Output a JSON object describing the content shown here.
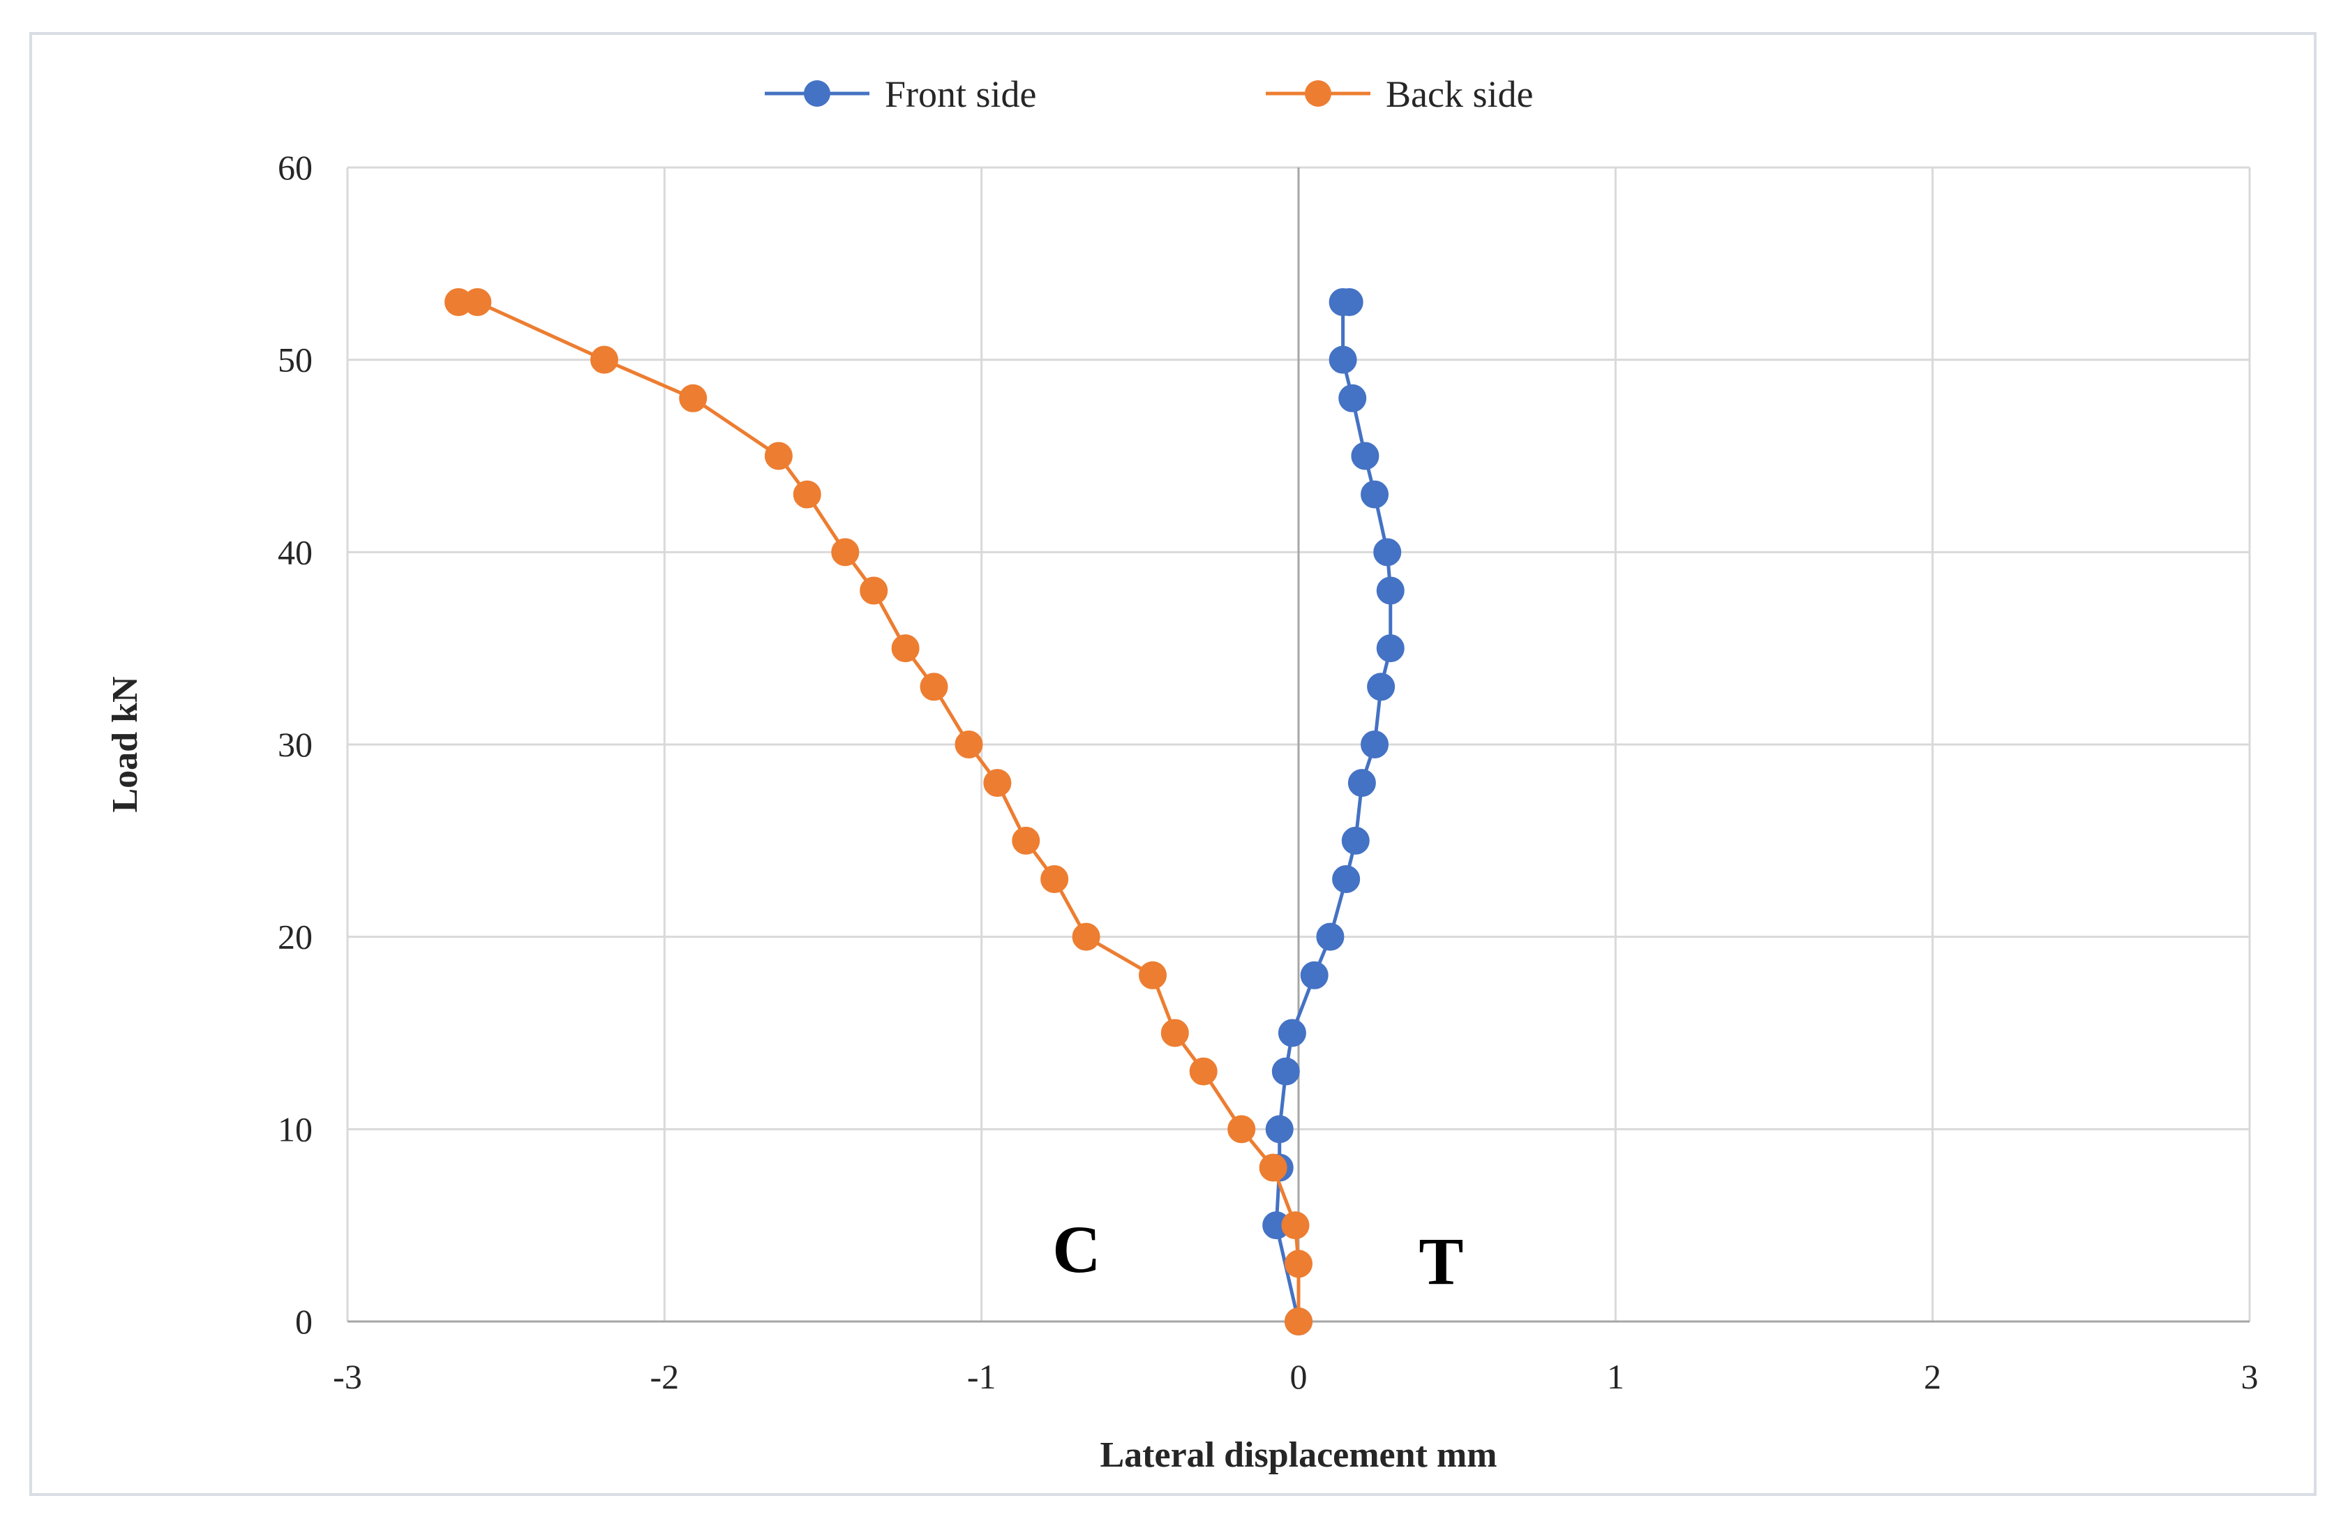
{
  "chart_data": {
    "type": "scatter",
    "title": "",
    "xlabel": "Lateral displacement mm",
    "ylabel": "Load kN",
    "xlim": [
      -3,
      3
    ],
    "ylim": [
      0,
      60
    ],
    "x_ticks": [
      -3,
      -2,
      -1,
      0,
      1,
      2,
      3
    ],
    "y_ticks": [
      0,
      10,
      20,
      30,
      40,
      50,
      60
    ],
    "grid": true,
    "legend_position": "top",
    "annotations": [
      {
        "text": "C",
        "x": -0.7,
        "y": 3.8
      },
      {
        "text": "T",
        "x": 0.45,
        "y": 3.2
      }
    ],
    "series": [
      {
        "name": "Front side",
        "color": "#4472C4",
        "x": [
          0.0,
          -0.07,
          -0.06,
          -0.06,
          -0.04,
          -0.02,
          0.05,
          0.1,
          0.15,
          0.18,
          0.2,
          0.24,
          0.26,
          0.29,
          0.29,
          0.28,
          0.24,
          0.21,
          0.17,
          0.14,
          0.14,
          0.16
        ],
        "y": [
          0,
          5,
          8,
          10,
          13,
          15,
          18,
          20,
          23,
          25,
          28,
          30,
          33,
          35,
          38,
          40,
          43,
          45,
          48,
          50,
          53,
          53
        ]
      },
      {
        "name": "Back side",
        "color": "#ED7D31",
        "x": [
          0.0,
          0.0,
          -0.01,
          -0.08,
          -0.18,
          -0.3,
          -0.39,
          -0.46,
          -0.67,
          -0.77,
          -0.86,
          -0.95,
          -1.04,
          -1.15,
          -1.24,
          -1.34,
          -1.43,
          -1.55,
          -1.64,
          -1.91,
          -2.19,
          -2.59,
          -2.65
        ],
        "y": [
          0,
          3,
          5,
          8,
          10,
          13,
          15,
          18,
          20,
          23,
          25,
          28,
          30,
          33,
          35,
          38,
          40,
          43,
          45,
          48,
          50,
          53,
          53
        ]
      }
    ]
  }
}
